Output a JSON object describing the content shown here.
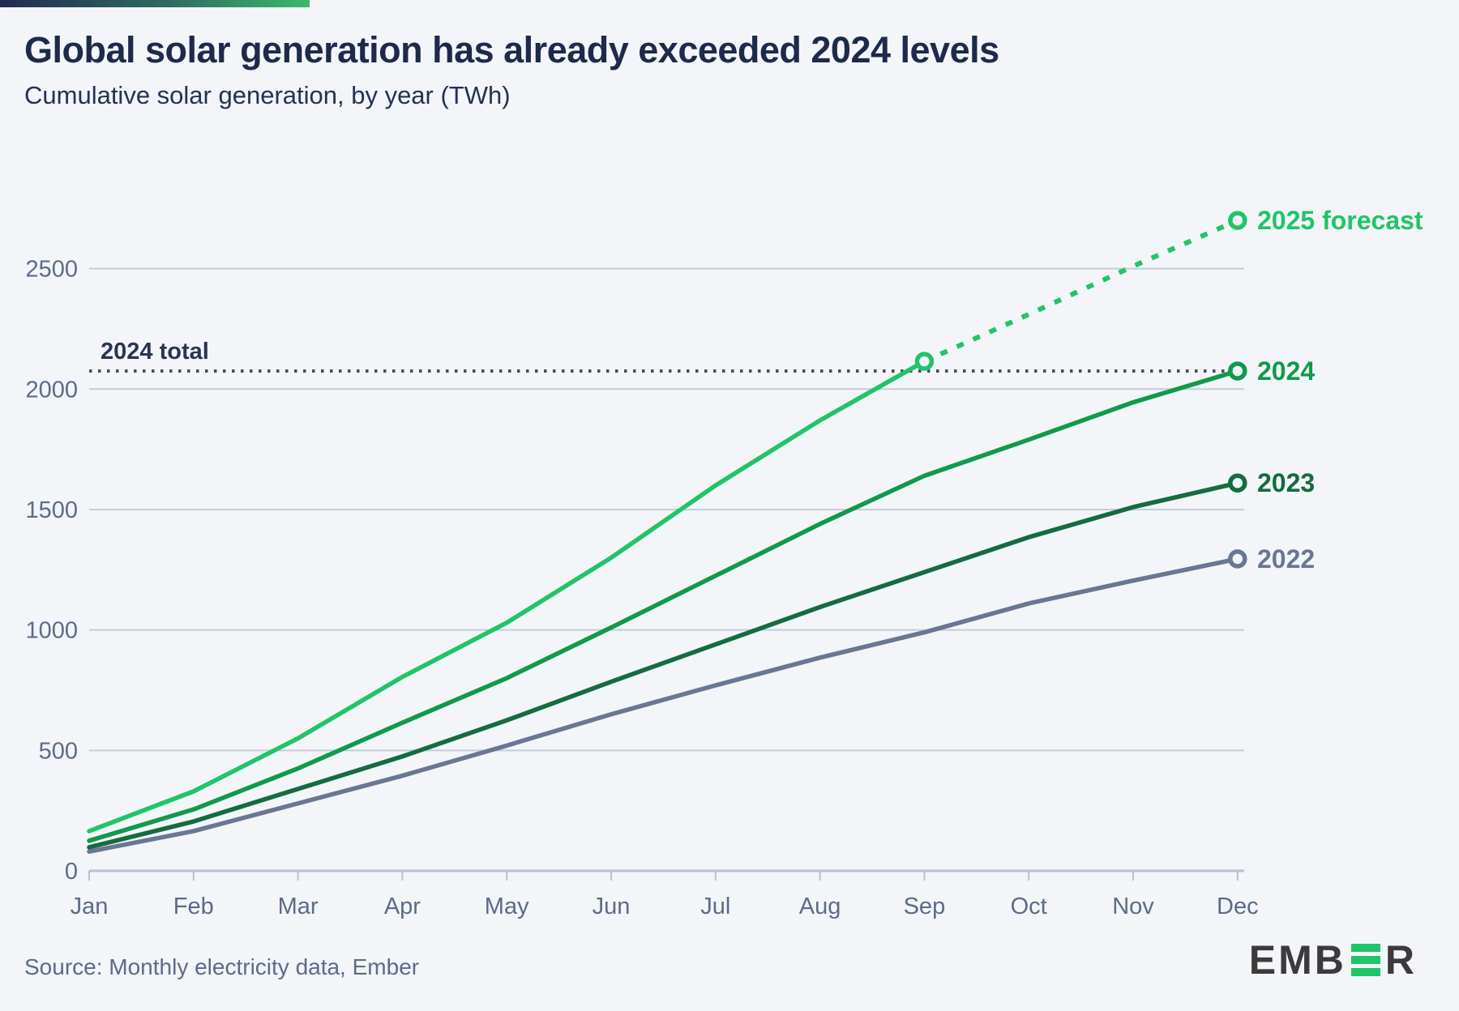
{
  "header": {
    "title": "Global solar generation has already exceeded 2024 levels",
    "subtitle": "Cumulative solar generation, by year (TWh)"
  },
  "footer": {
    "source": "Source: Monthly electricity data, Ember",
    "logo_prefix": "EMB",
    "logo_suffix": "R",
    "logo_green": "#1fc567",
    "logo_charcoal": "#3b3b3b"
  },
  "chart_data": {
    "type": "line",
    "title": "Cumulative solar generation, by year (TWh)",
    "unit": "TWh",
    "categories": [
      "Jan",
      "Feb",
      "Mar",
      "Apr",
      "May",
      "Jun",
      "Jul",
      "Aug",
      "Sep",
      "Oct",
      "Nov",
      "Dec"
    ],
    "yticks": [
      0,
      500,
      1000,
      1500,
      2000,
      2500
    ],
    "ylim": [
      0,
      2750
    ],
    "grid": true,
    "legend_position": "line-end-labels",
    "series": [
      {
        "name": "2022",
        "label": "2022",
        "color": "#6a7792",
        "style": "solid",
        "values": [
          80,
          165,
          280,
          395,
          520,
          650,
          770,
          885,
          990,
          1110,
          1205,
          1295
        ]
      },
      {
        "name": "2023",
        "label": "2023",
        "color": "#146c3f",
        "style": "solid",
        "values": [
          98,
          205,
          340,
          475,
          625,
          785,
          940,
          1095,
          1240,
          1385,
          1510,
          1610
        ]
      },
      {
        "name": "2024",
        "label": "2024",
        "color": "#109a4c",
        "style": "solid",
        "values": [
          125,
          255,
          425,
          615,
          800,
          1010,
          1225,
          1440,
          1640,
          1790,
          1945,
          2075
        ]
      },
      {
        "name": "2025",
        "label": "2025 forecast",
        "color": "#1fc567",
        "style": "solid-then-dashed",
        "actual_values": [
          165,
          330,
          550,
          805,
          1030,
          1300,
          1600,
          1870,
          2115
        ],
        "forecast_values": [
          2115,
          2310,
          2510,
          2700
        ],
        "forecast_start_category": "Sep"
      }
    ],
    "annotation_line": {
      "label": "2024 total",
      "value": 2075,
      "color": "#474f63"
    },
    "axis_text_color": "#5d6b88",
    "gridline_color": "#c6ccd9",
    "baseline_color": "#b9c1d2"
  }
}
